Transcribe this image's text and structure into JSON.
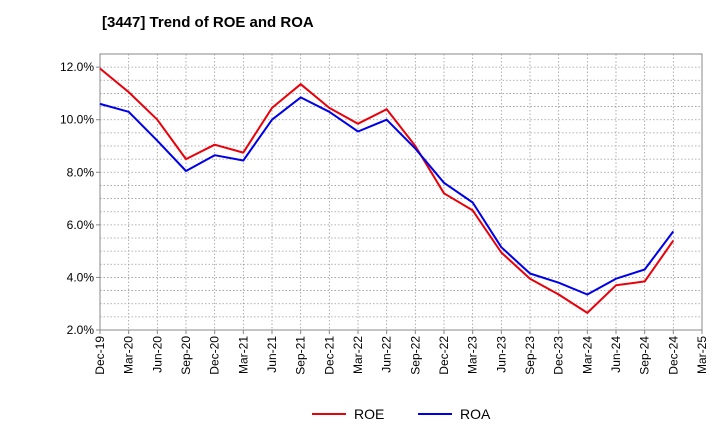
{
  "chart_data": {
    "type": "line",
    "title": "[3447]  Trend of ROE and ROA",
    "xlabel": "",
    "ylabel": "",
    "categories": [
      "Dec-19",
      "Mar-20",
      "Jun-20",
      "Sep-20",
      "Dec-20",
      "Mar-21",
      "Jun-21",
      "Sep-21",
      "Dec-21",
      "Mar-22",
      "Jun-22",
      "Sep-22",
      "Dec-22",
      "Mar-23",
      "Jun-23",
      "Sep-23",
      "Dec-23",
      "Mar-24",
      "Jun-24",
      "Sep-24",
      "Dec-24",
      "Mar-25"
    ],
    "ylim": [
      2.0,
      12.5
    ],
    "yticks": [
      2.0,
      4.0,
      6.0,
      8.0,
      10.0,
      12.0
    ],
    "ytick_labels": [
      "2.0%",
      "4.0%",
      "6.0%",
      "8.0%",
      "10.0%",
      "12.0%"
    ],
    "grid": true,
    "legend": "bottom-center",
    "series": [
      {
        "name": "ROE",
        "color": "#e8000b",
        "values": [
          11.95,
          11.05,
          10.0,
          8.5,
          9.05,
          8.75,
          10.45,
          11.35,
          10.45,
          9.85,
          10.4,
          9.0,
          7.2,
          6.55,
          4.95,
          3.95,
          3.35,
          2.65,
          3.7,
          3.85,
          5.4,
          null
        ]
      },
      {
        "name": "ROA",
        "color": "#0000e8",
        "values": [
          10.6,
          10.3,
          9.2,
          8.05,
          8.65,
          8.45,
          10.0,
          10.85,
          10.3,
          9.55,
          10.0,
          8.9,
          7.6,
          6.85,
          5.15,
          4.15,
          3.8,
          3.35,
          3.95,
          4.3,
          5.75,
          null
        ]
      }
    ]
  }
}
